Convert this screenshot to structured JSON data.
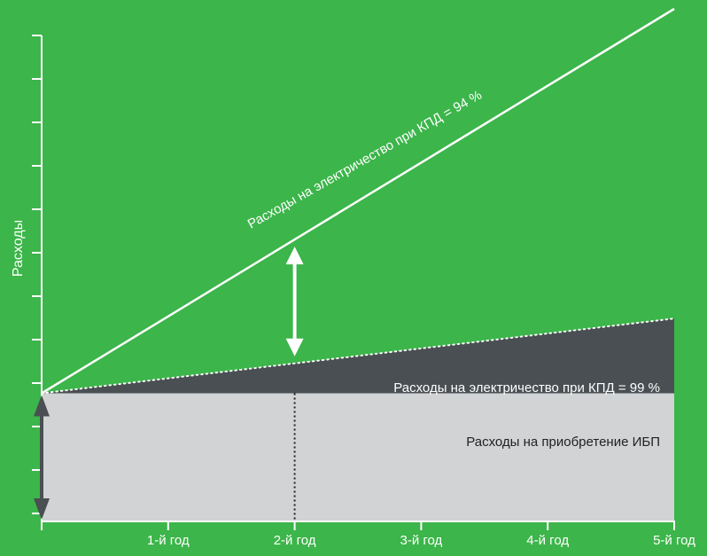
{
  "chart_data": {
    "type": "area",
    "ylabel": "Расходы",
    "xlabel": "",
    "categories": [
      "1-й год",
      "2-й год",
      "3-й год",
      "4-й год",
      "5-й год"
    ],
    "x": [
      0,
      1,
      2,
      3,
      4,
      5
    ],
    "xlim": [
      0,
      5
    ],
    "ylim": [
      0,
      12
    ],
    "series": [
      {
        "name": "Расходы на приобретение ИБП",
        "values": [
          3,
          3,
          3,
          3,
          3,
          3
        ]
      },
      {
        "name": "Расходы на электричество при КПД = 99 %",
        "values": [
          3,
          3.35,
          3.7,
          4.05,
          4.4,
          4.75
        ]
      },
      {
        "name": "Расходы на электричество при КПД = 94 %",
        "values": [
          3,
          4.8,
          6.6,
          8.4,
          10.2,
          12
        ]
      }
    ],
    "annotations": [
      "marked difference at 2-й год between 94 % and 99 % lines",
      "initial UPS purchase cost shown by vertical arrow at year 0"
    ],
    "grid": false,
    "colors": {
      "background": "#3cb54a",
      "purchase_area": "#d2d3d4",
      "electricity_99_area": "#4a4f53",
      "line_94": "#ffffff",
      "axis": "#ffffff"
    }
  }
}
